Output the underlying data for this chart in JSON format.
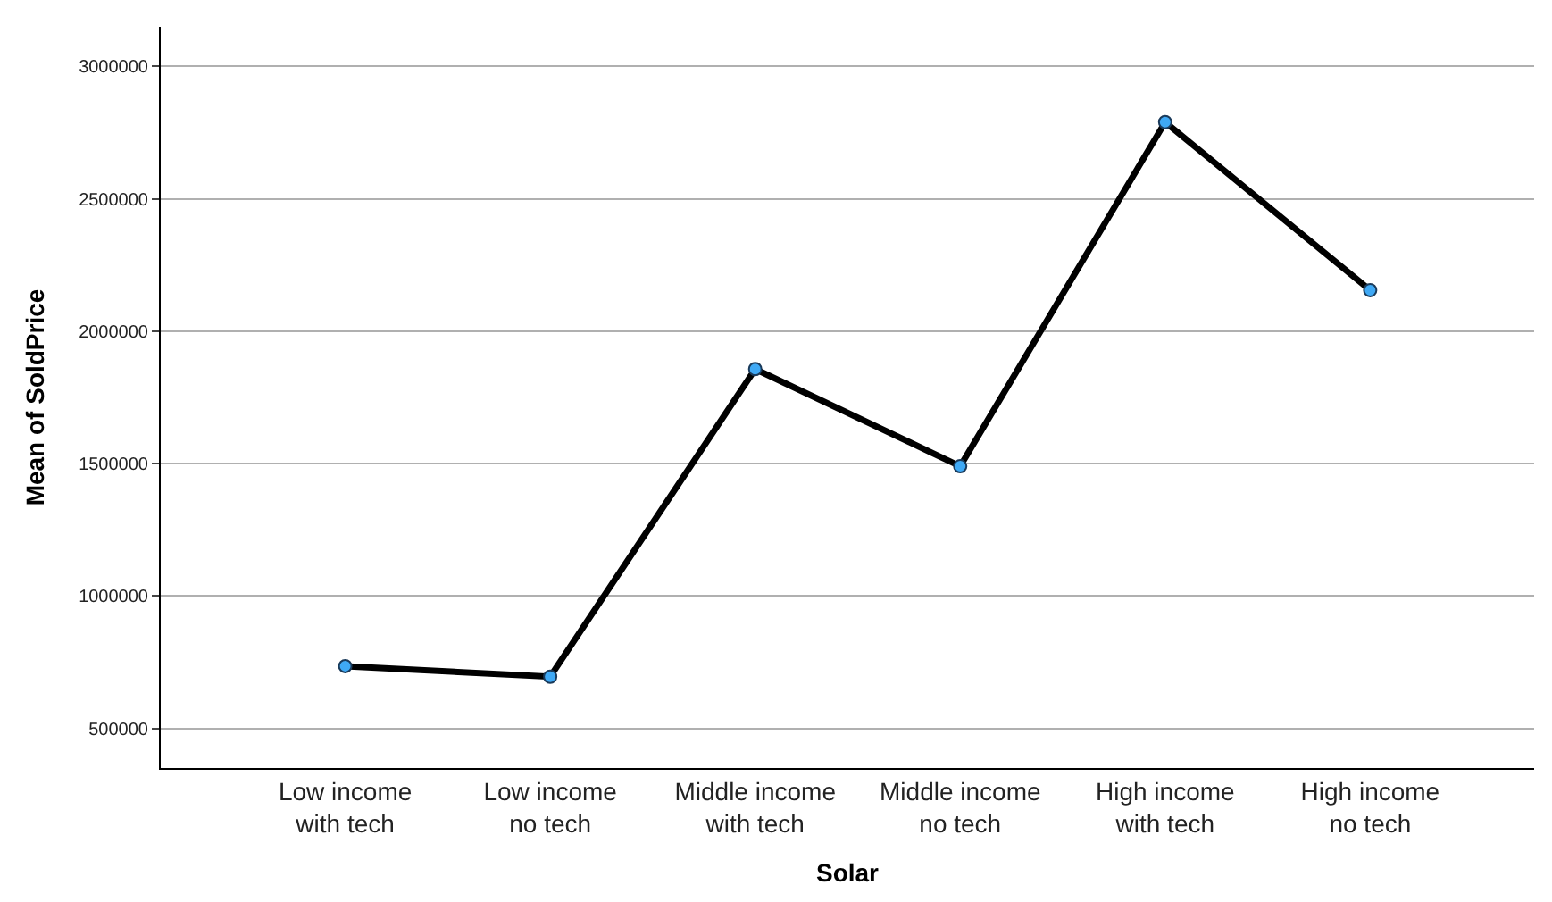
{
  "chart_data": {
    "type": "line",
    "xlabel": "Solar",
    "ylabel": "Mean of SoldPrice",
    "categories": [
      "Low income\nwith tech",
      "Low income\nno tech",
      "Middle income\nwith tech",
      "Middle income\nno tech",
      "High income\nwith tech",
      "High income\nno tech"
    ],
    "series": [
      {
        "color": "#000000",
        "values": [
          735000,
          695000,
          1857000,
          1490000,
          2790000,
          2155000
        ]
      }
    ],
    "ylim": [
      350000,
      3150000
    ],
    "yticks": [
      500000,
      1000000,
      1500000,
      2000000,
      2500000,
      3000000
    ],
    "grid": "y",
    "marker": "circle",
    "line_style": "solid"
  }
}
